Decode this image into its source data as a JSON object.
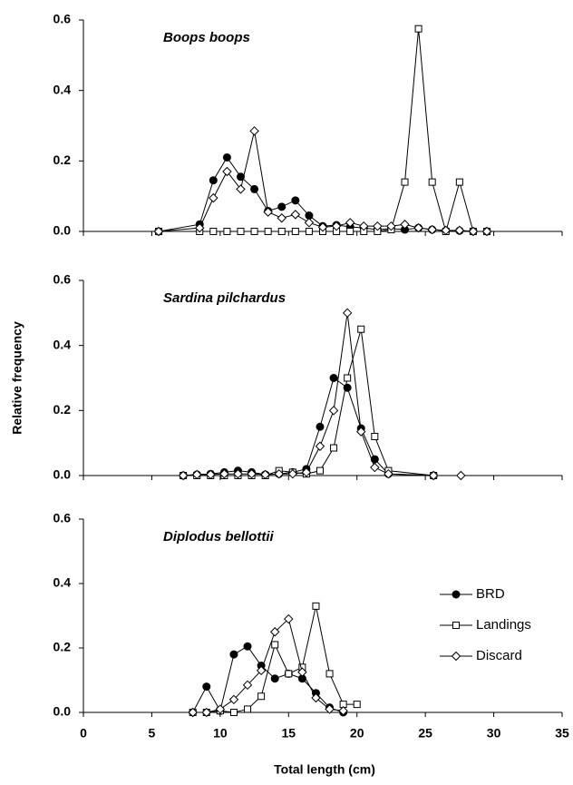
{
  "chart_data": [
    {
      "type": "line",
      "title": "Boops boops",
      "x": [
        5.5,
        8.5,
        9.5,
        10.5,
        11.5,
        12.5,
        13.5,
        14.5,
        15.5,
        16.5,
        17.5,
        18.5,
        19.5,
        20.5,
        21.5,
        22.5,
        23.5,
        24.5,
        25.5,
        26.5,
        27.5,
        28.5,
        29.5
      ],
      "series": [
        {
          "color": "#000000",
          "marker": "circle",
          "filled": true,
          "values": [
            0,
            0.02,
            0.145,
            0.21,
            0.155,
            0.12,
            0.058,
            0.07,
            0.088,
            0.045,
            0.015,
            0.018,
            0.013,
            0.01,
            0.005,
            0.008,
            0.005,
            0.01,
            0.005,
            0.002,
            0.002,
            0,
            0
          ]
        },
        {
          "color": "#000000",
          "marker": "square",
          "filled": false,
          "values": [
            0,
            0,
            0,
            0,
            0,
            0,
            0,
            0,
            0,
            0,
            0,
            0,
            0,
            0,
            0,
            0.005,
            0.14,
            0.575,
            0.14,
            0,
            0.14,
            0,
            0
          ]
        },
        {
          "color": "#000000",
          "marker": "diamond",
          "filled": false,
          "values": [
            0,
            0.01,
            0.095,
            0.17,
            0.12,
            0.285,
            0.055,
            0.038,
            0.048,
            0.025,
            0.012,
            0.015,
            0.025,
            0.015,
            0.015,
            0.015,
            0.02,
            0.01,
            0.005,
            0.003,
            0.003,
            0,
            0
          ]
        }
      ],
      "xlim": [
        0,
        35
      ],
      "xticks": [
        0,
        5,
        10,
        15,
        20,
        25,
        30,
        35
      ],
      "ylim": [
        0,
        0.6
      ],
      "yticks": [
        {
          "value": 0,
          "label": "0.0"
        },
        0.2,
        0.4,
        0.6
      ]
    },
    {
      "type": "line",
      "title": "Sardina pilchardus",
      "ylabel": "Relative frequency",
      "x": [
        7.3,
        8.3,
        9.3,
        10.3,
        11.3,
        12.3,
        13.3,
        14.3,
        15.3,
        16.3,
        17.3,
        18.3,
        19.3,
        20.3,
        21.3,
        22.3,
        25.6,
        27.6
      ],
      "series": [
        {
          "color": "#000000",
          "marker": "circle",
          "filled": true,
          "values": [
            0,
            0.003,
            0.005,
            0.01,
            0.015,
            0.01,
            0.003,
            0.005,
            0.01,
            0.02,
            0.15,
            0.3,
            0.27,
            0.145,
            0.05,
            0.005,
            0,
            null
          ]
        },
        {
          "color": "#000000",
          "marker": "square",
          "filled": false,
          "values": [
            0,
            0,
            0,
            0,
            0,
            0,
            0,
            0.015,
            0.01,
            0.005,
            0.015,
            0.085,
            0.3,
            0.45,
            0.12,
            0.015,
            0,
            null
          ]
        },
        {
          "color": "#000000",
          "marker": "diamond",
          "filled": false,
          "values": [
            0,
            0.003,
            0.003,
            0.005,
            0.005,
            0.005,
            0.003,
            0.005,
            0.005,
            0.01,
            0.09,
            0.2,
            0.5,
            0.135,
            0.025,
            0.005,
            0,
            0
          ]
        }
      ],
      "xlim": [
        0,
        35
      ],
      "xticks": [
        0,
        5,
        10,
        15,
        20,
        25,
        30,
        35
      ],
      "ylim": [
        0,
        0.6
      ],
      "yticks": [
        {
          "value": 0,
          "label": "0.0"
        },
        0.2,
        0.4,
        0.6
      ]
    },
    {
      "type": "line",
      "title": "Diplodus bellottii",
      "xlabel": "Total length (cm)",
      "legend": "right",
      "x": [
        8,
        9,
        10,
        11,
        12,
        13,
        14,
        15,
        16,
        17,
        18,
        19,
        20
      ],
      "series": [
        {
          "name": "BRD",
          "color": "#000000",
          "marker": "circle",
          "filled": true,
          "values": [
            0,
            0.08,
            0.005,
            0.18,
            0.205,
            0.145,
            0.105,
            0.12,
            0.105,
            0.06,
            0.015,
            0,
            null
          ]
        },
        {
          "name": "Landings",
          "color": "#000000",
          "marker": "square",
          "filled": false,
          "values": [
            0,
            0,
            0.005,
            0,
            0.01,
            0.05,
            0.21,
            0.12,
            0.14,
            0.33,
            0.12,
            0.025,
            0.025
          ]
        },
        {
          "name": "Discard",
          "color": "#000000",
          "marker": "diamond",
          "filled": false,
          "values": [
            0,
            0,
            0.01,
            0.04,
            0.085,
            0.13,
            0.25,
            0.29,
            0.125,
            0.045,
            0.01,
            0.005,
            null
          ]
        }
      ],
      "xlim": [
        0,
        35
      ],
      "xticks": [
        0,
        5,
        10,
        15,
        20,
        25,
        30,
        35
      ],
      "ylim": [
        0,
        0.6
      ],
      "yticks": [
        {
          "value": 0,
          "label": "0.0"
        },
        0.2,
        0.4,
        0.6
      ]
    }
  ]
}
